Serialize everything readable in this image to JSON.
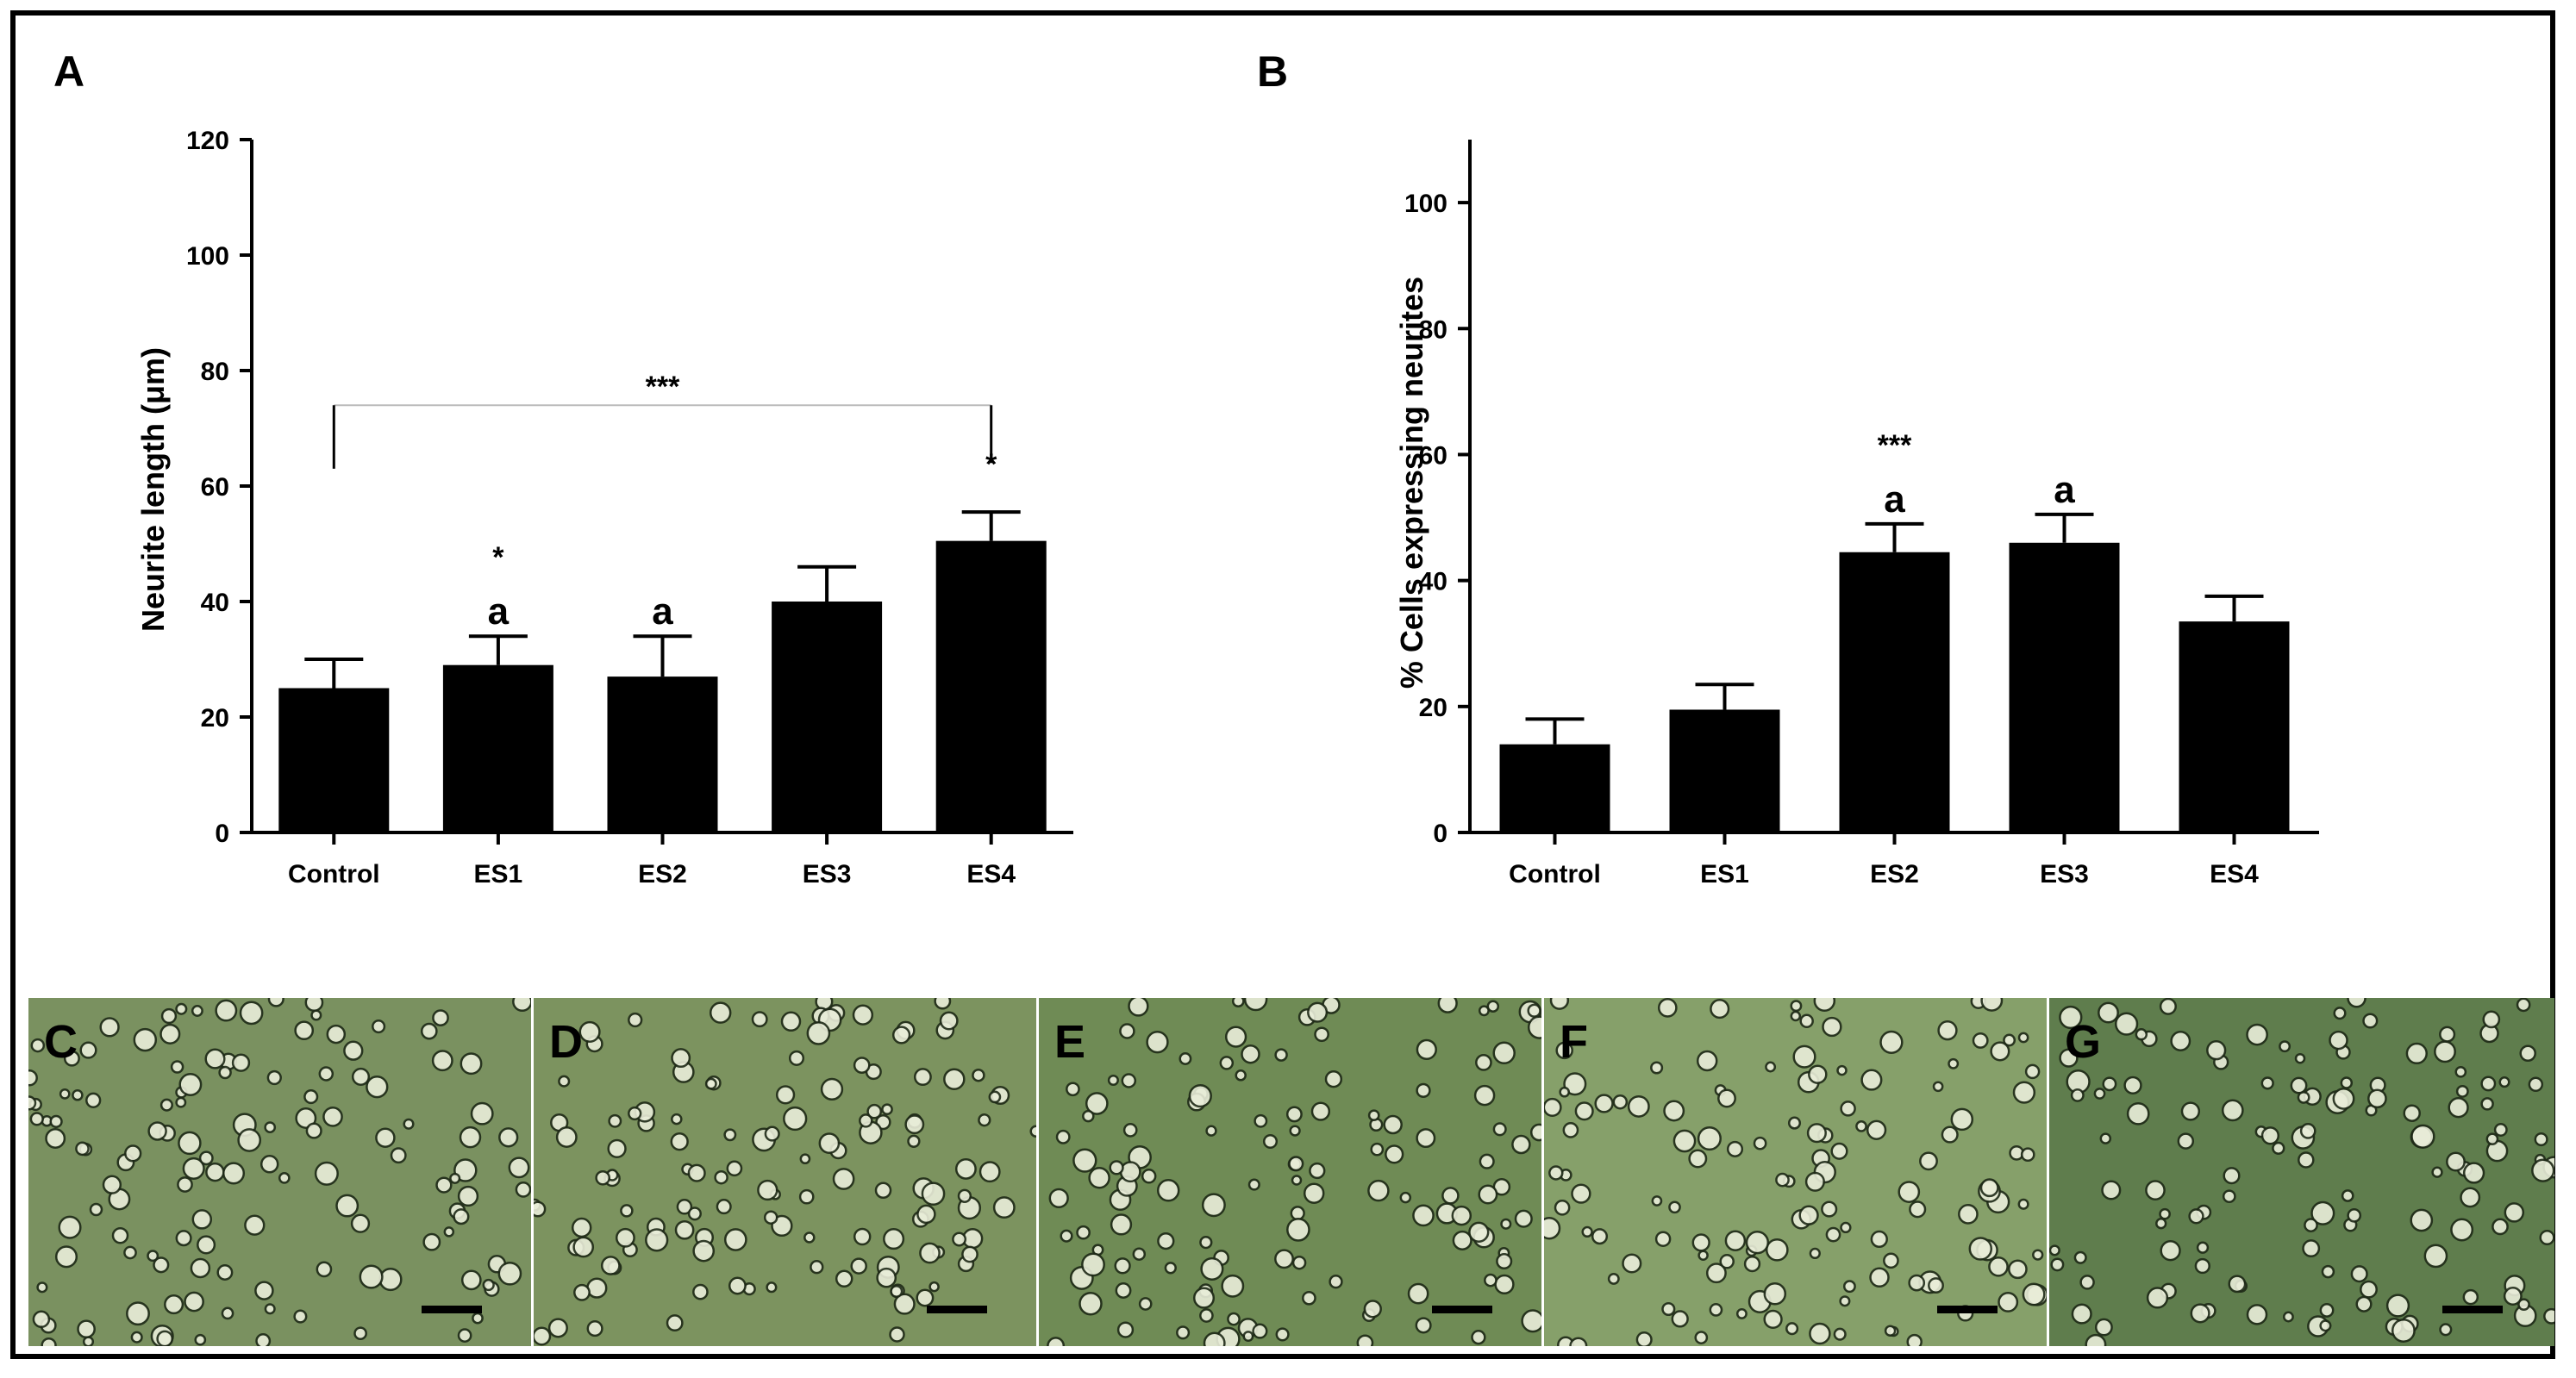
{
  "colors": {
    "bar": "#000000",
    "micrograph_base": "#6f8a57"
  },
  "chart_data": [
    {
      "panel": "A",
      "type": "bar",
      "ylabel": "Neurite length (μm)",
      "xlabel": "",
      "ylim": [
        0,
        120
      ],
      "yticks": [
        "0",
        "20",
        "40",
        "60",
        "80",
        "100",
        "120"
      ],
      "categories": [
        "Control",
        "ES1",
        "ES2",
        "ES3",
        "ES4"
      ],
      "values": [
        25,
        29,
        27,
        40,
        50.5
      ],
      "errors": [
        5,
        5,
        7,
        6,
        5
      ],
      "marks_above": [
        "",
        "a",
        "a",
        "",
        ""
      ],
      "stars_above": [
        "",
        "*",
        "",
        "",
        "*"
      ],
      "comparison": {
        "from": "Control",
        "to": "ES4",
        "label": "***"
      }
    },
    {
      "panel": "B",
      "type": "bar",
      "ylabel": "% Cells expressing neurites",
      "xlabel": "",
      "ylim": [
        0,
        110
      ],
      "yticks": [
        "0",
        "20",
        "40",
        "60",
        "80",
        "100"
      ],
      "categories": [
        "Control",
        "ES1",
        "ES2",
        "ES3",
        "ES4"
      ],
      "values": [
        14,
        19.5,
        44.5,
        46,
        33.5
      ],
      "errors": [
        4,
        4,
        4.5,
        4.5,
        4
      ],
      "marks_above": [
        "",
        "",
        "a",
        "a",
        ""
      ],
      "stars_above": [
        "",
        "",
        "***",
        "",
        ""
      ]
    }
  ],
  "micrographs": [
    {
      "label": "C"
    },
    {
      "label": "D"
    },
    {
      "label": "E"
    },
    {
      "label": "F"
    },
    {
      "label": "G"
    }
  ]
}
